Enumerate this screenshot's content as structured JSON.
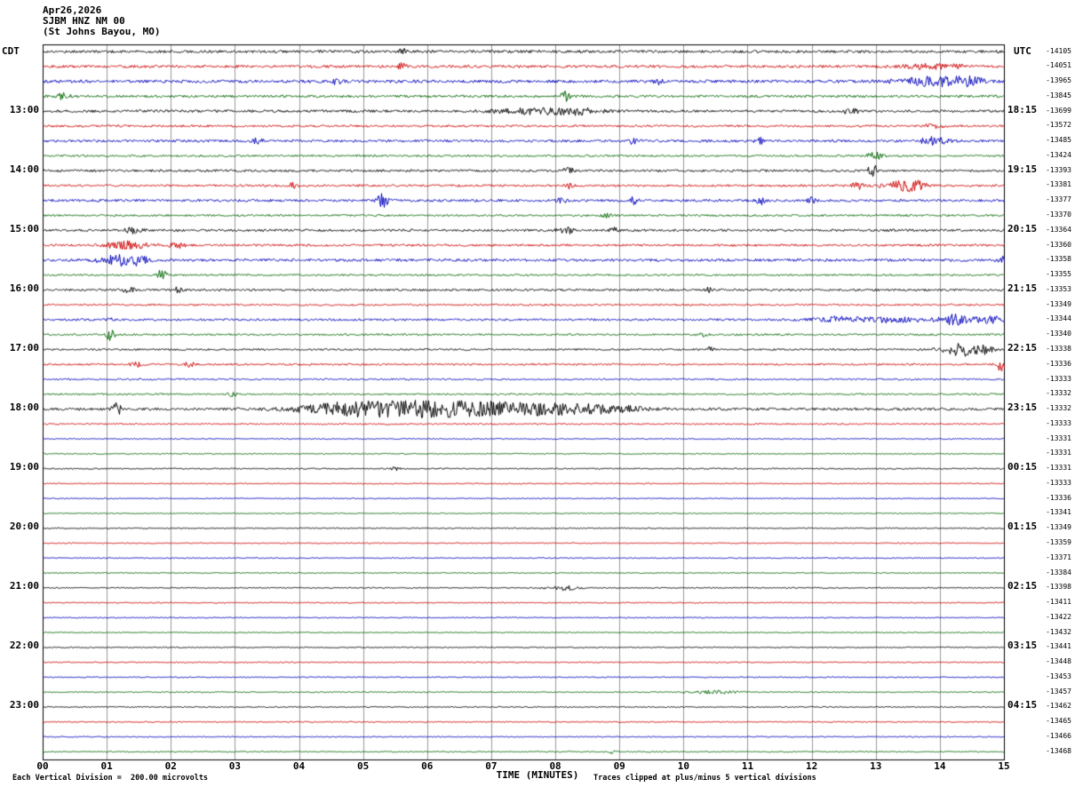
{
  "chart_data": {
    "type": "line",
    "subtype": "seismogram-helicorder",
    "header": {
      "date": "Apr26,2026",
      "station": "SJBM HNZ NM 00",
      "location": "(St Johns Bayou, MO)"
    },
    "left_axis_label": "CDT",
    "right_axis_label": "UTC",
    "xlabel": "TIME (MINUTES)",
    "scale_note": "Each Vertical Division =  200.00 microvolts",
    "clip_note": "Traces clipped at plus/minus 5 vertical divisions",
    "x_range": [
      0,
      15
    ],
    "x_ticks": [
      "00",
      "01",
      "02",
      "03",
      "04",
      "05",
      "06",
      "07",
      "08",
      "09",
      "10",
      "11",
      "12",
      "13",
      "14",
      "15"
    ],
    "minutes_per_line": 15,
    "grid_color": "#9a9a9a",
    "palette": {
      "k": "#000000",
      "r": "#cc0000",
      "b": "#0000bb",
      "g": "#006600"
    },
    "rows": [
      {
        "c": "k",
        "l": "",
        "r": "",
        "o": "-14105",
        "a": 1.5,
        "s": [
          [
            5.6,
            3,
            0.05
          ]
        ]
      },
      {
        "c": "r",
        "l": "",
        "r": "",
        "o": "-14051",
        "a": 1.5,
        "s": [
          [
            5.6,
            4,
            0.05
          ],
          [
            13.9,
            3,
            0.3
          ]
        ]
      },
      {
        "c": "b",
        "l": "",
        "r": "",
        "o": "-13965",
        "a": 1.7,
        "s": [
          [
            4.6,
            4,
            0.05
          ],
          [
            9.6,
            3,
            0.05
          ],
          [
            13.9,
            5,
            0.35
          ],
          [
            14.4,
            4,
            0.2
          ]
        ]
      },
      {
        "c": "g",
        "l": "",
        "r": "",
        "o": "-13845",
        "a": 1.4,
        "s": [
          [
            0.3,
            3,
            0.08
          ],
          [
            8.15,
            5,
            0.05
          ]
        ]
      },
      {
        "c": "k",
        "l": "13:00",
        "r": "18:15",
        "o": "-13699",
        "a": 1.4,
        "s": [
          [
            7.6,
            3,
            0.4
          ],
          [
            8.3,
            3,
            0.3
          ],
          [
            12.6,
            2.5,
            0.1
          ]
        ]
      },
      {
        "c": "r",
        "l": "",
        "r": "",
        "o": "-13572",
        "a": 1.2,
        "s": [
          [
            13.9,
            3,
            0.1
          ]
        ]
      },
      {
        "c": "b",
        "l": "",
        "r": "",
        "o": "-13485",
        "a": 1.4,
        "s": [
          [
            3.35,
            4,
            0.05
          ],
          [
            9.2,
            3,
            0.06
          ],
          [
            11.2,
            3,
            0.06
          ],
          [
            13.9,
            4,
            0.15
          ]
        ]
      },
      {
        "c": "g",
        "l": "",
        "r": "",
        "o": "-13424",
        "a": 1.1,
        "s": [
          [
            13.0,
            4,
            0.1
          ]
        ]
      },
      {
        "c": "k",
        "l": "14:00",
        "r": "19:15",
        "o": "-13393",
        "a": 1.3,
        "s": [
          [
            8.2,
            3,
            0.06
          ],
          [
            12.95,
            6,
            0.06
          ]
        ]
      },
      {
        "c": "r",
        "l": "",
        "r": "",
        "o": "-13381",
        "a": 1.2,
        "s": [
          [
            3.9,
            3,
            0.05
          ],
          [
            8.2,
            3,
            0.05
          ],
          [
            12.7,
            4,
            0.08
          ],
          [
            13.4,
            5,
            0.2
          ],
          [
            13.6,
            4,
            0.1
          ]
        ]
      },
      {
        "c": "b",
        "l": "",
        "r": "",
        "o": "-13377",
        "a": 1.4,
        "s": [
          [
            5.3,
            7,
            0.06
          ],
          [
            8.1,
            3,
            0.05
          ],
          [
            9.2,
            4,
            0.05
          ],
          [
            11.2,
            4,
            0.06
          ],
          [
            12.0,
            3,
            0.05
          ]
        ]
      },
      {
        "c": "g",
        "l": "",
        "r": "",
        "o": "-13370",
        "a": 1.1,
        "s": [
          [
            8.8,
            3,
            0.05
          ]
        ]
      },
      {
        "c": "k",
        "l": "15:00",
        "r": "20:15",
        "o": "-13364",
        "a": 1.3,
        "s": [
          [
            1.4,
            3,
            0.1
          ],
          [
            8.15,
            7,
            0.07
          ],
          [
            8.9,
            4,
            0.05
          ]
        ]
      },
      {
        "c": "r",
        "l": "",
        "r": "",
        "o": "-13360",
        "a": 1.2,
        "s": [
          [
            1.3,
            4,
            0.25
          ],
          [
            2.1,
            3,
            0.1
          ]
        ]
      },
      {
        "c": "b",
        "l": "",
        "r": "",
        "o": "-13358",
        "a": 1.5,
        "s": [
          [
            1.2,
            6,
            0.2
          ],
          [
            1.5,
            4,
            0.1
          ],
          [
            14.95,
            5,
            0.05
          ]
        ]
      },
      {
        "c": "g",
        "l": "",
        "r": "",
        "o": "-13355",
        "a": 1.0,
        "s": [
          [
            1.85,
            6,
            0.05
          ]
        ]
      },
      {
        "c": "k",
        "l": "16:00",
        "r": "21:15",
        "o": "-13353",
        "a": 1.2,
        "s": [
          [
            1.35,
            4,
            0.06
          ],
          [
            2.1,
            3,
            0.05
          ],
          [
            10.4,
            2.5,
            0.05
          ]
        ]
      },
      {
        "c": "r",
        "l": "",
        "r": "",
        "o": "-13349",
        "a": 1.0,
        "s": []
      },
      {
        "c": "b",
        "l": "",
        "r": "",
        "o": "-13344",
        "a": 1.2,
        "s": [
          [
            1.05,
            4,
            0.05
          ],
          [
            12.4,
            3,
            0.3
          ],
          [
            13.3,
            3,
            0.3
          ],
          [
            14.2,
            6,
            0.15
          ],
          [
            14.8,
            4,
            0.2
          ]
        ]
      },
      {
        "c": "g",
        "l": "",
        "r": "",
        "o": "-13340",
        "a": 1.0,
        "s": [
          [
            1.05,
            6,
            0.05
          ],
          [
            10.3,
            3,
            0.05
          ]
        ]
      },
      {
        "c": "k",
        "l": "17:00",
        "r": "22:15",
        "o": "-13338",
        "a": 1.0,
        "s": [
          [
            10.4,
            2.5,
            0.06
          ],
          [
            14.3,
            6,
            0.2
          ],
          [
            14.6,
            5,
            0.15
          ]
        ]
      },
      {
        "c": "r",
        "l": "",
        "r": "",
        "o": "-13336",
        "a": 1.0,
        "s": [
          [
            1.45,
            3,
            0.06
          ],
          [
            2.3,
            3,
            0.06
          ],
          [
            14.95,
            7,
            0.06
          ]
        ]
      },
      {
        "c": "b",
        "l": "",
        "r": "",
        "o": "-13333",
        "a": 0.9,
        "s": []
      },
      {
        "c": "g",
        "l": "",
        "r": "",
        "o": "-13332",
        "a": 0.9,
        "s": [
          [
            2.95,
            3,
            0.05
          ]
        ]
      },
      {
        "c": "k",
        "l": "18:00",
        "r": "23:15",
        "o": "-13332",
        "a": 1.4,
        "s": [
          [
            1.15,
            7,
            0.05
          ],
          [
            4.6,
            4,
            0.5
          ],
          [
            5.4,
            5,
            0.7
          ],
          [
            6.3,
            5,
            0.7
          ],
          [
            7.2,
            4,
            0.6
          ],
          [
            8.1,
            4,
            0.5
          ],
          [
            8.9,
            3,
            0.4
          ]
        ]
      },
      {
        "c": "r",
        "l": "",
        "r": "",
        "o": "-13333",
        "a": 0.8,
        "s": []
      },
      {
        "c": "b",
        "l": "",
        "r": "",
        "o": "-13331",
        "a": 0.6,
        "s": []
      },
      {
        "c": "g",
        "l": "",
        "r": "",
        "o": "-13331",
        "a": 0.6,
        "s": []
      },
      {
        "c": "k",
        "l": "19:00",
        "r": "00:15",
        "o": "-13331",
        "a": 0.7,
        "s": [
          [
            5.5,
            2,
            0.05
          ]
        ]
      },
      {
        "c": "r",
        "l": "",
        "r": "",
        "o": "-13333",
        "a": 0.6,
        "s": []
      },
      {
        "c": "b",
        "l": "",
        "r": "",
        "o": "-13336",
        "a": 0.55,
        "s": []
      },
      {
        "c": "g",
        "l": "",
        "r": "",
        "o": "-13341",
        "a": 0.55,
        "s": []
      },
      {
        "c": "k",
        "l": "20:00",
        "r": "01:15",
        "o": "-13349",
        "a": 0.6,
        "s": []
      },
      {
        "c": "r",
        "l": "",
        "r": "",
        "o": "-13359",
        "a": 0.55,
        "s": []
      },
      {
        "c": "b",
        "l": "",
        "r": "",
        "o": "-13371",
        "a": 0.55,
        "s": []
      },
      {
        "c": "g",
        "l": "",
        "r": "",
        "o": "-13384",
        "a": 0.55,
        "s": []
      },
      {
        "c": "k",
        "l": "21:00",
        "r": "02:15",
        "o": "-13398",
        "a": 0.6,
        "s": [
          [
            8.1,
            2.5,
            0.2
          ]
        ]
      },
      {
        "c": "r",
        "l": "",
        "r": "",
        "o": "-13411",
        "a": 0.55,
        "s": []
      },
      {
        "c": "b",
        "l": "",
        "r": "",
        "o": "-13422",
        "a": 0.55,
        "s": []
      },
      {
        "c": "g",
        "l": "",
        "r": "",
        "o": "-13432",
        "a": 0.55,
        "s": []
      },
      {
        "c": "k",
        "l": "22:00",
        "r": "03:15",
        "o": "-13441",
        "a": 0.6,
        "s": []
      },
      {
        "c": "r",
        "l": "",
        "r": "",
        "o": "-13448",
        "a": 0.55,
        "s": []
      },
      {
        "c": "b",
        "l": "",
        "r": "",
        "o": "-13453",
        "a": 0.6,
        "s": []
      },
      {
        "c": "g",
        "l": "",
        "r": "",
        "o": "-13457",
        "a": 0.6,
        "s": [
          [
            10.5,
            2,
            0.25
          ]
        ]
      },
      {
        "c": "k",
        "l": "23:00",
        "r": "04:15",
        "o": "-13462",
        "a": 0.6,
        "s": []
      },
      {
        "c": "r",
        "l": "",
        "r": "",
        "o": "-13465",
        "a": 0.6,
        "s": []
      },
      {
        "c": "b",
        "l": "",
        "r": "",
        "o": "-13466",
        "a": 0.55,
        "s": []
      },
      {
        "c": "g",
        "l": "",
        "r": "",
        "o": "-13468",
        "a": 0.6,
        "s": [
          [
            8.85,
            2.5,
            0.05
          ]
        ]
      }
    ]
  }
}
